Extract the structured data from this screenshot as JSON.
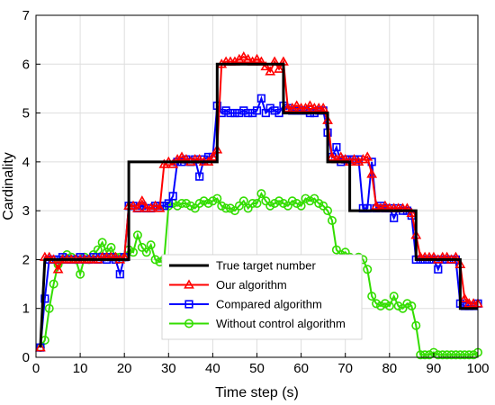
{
  "chart_data": {
    "type": "line",
    "title": "",
    "xlabel": "Time step (s)",
    "ylabel": "Cardinality",
    "xlim": [
      0,
      100
    ],
    "ylim": [
      0,
      7
    ],
    "xticks": [
      0,
      10,
      20,
      30,
      40,
      50,
      60,
      70,
      80,
      90,
      100
    ],
    "yticks": [
      0,
      1,
      2,
      3,
      4,
      5,
      6,
      7
    ],
    "grid": true,
    "legend_position": "bottom-center",
    "series": [
      {
        "name": "True target number",
        "color": "#000000",
        "marker": "none",
        "x": [
          1,
          2,
          21,
          21,
          41,
          41,
          56,
          56,
          66,
          66,
          71,
          71,
          76,
          76,
          86,
          86,
          96,
          96,
          100
        ],
        "y": [
          0.2,
          2,
          2,
          4,
          4,
          6,
          6,
          5,
          5,
          4,
          4,
          3,
          3,
          3,
          3,
          2,
          2,
          1,
          1
        ]
      },
      {
        "name": "Our algorithm",
        "color": "#ff0000",
        "marker": "triangle",
        "x": [
          1,
          2,
          3,
          4,
          5,
          6,
          7,
          8,
          9,
          10,
          11,
          12,
          13,
          14,
          15,
          16,
          17,
          18,
          19,
          20,
          21,
          22,
          23,
          24,
          25,
          26,
          27,
          28,
          29,
          30,
          31,
          32,
          33,
          34,
          35,
          36,
          37,
          38,
          39,
          40,
          41,
          42,
          43,
          44,
          45,
          46,
          47,
          48,
          49,
          50,
          51,
          52,
          53,
          54,
          55,
          56,
          57,
          58,
          59,
          60,
          61,
          62,
          63,
          64,
          65,
          66,
          67,
          68,
          69,
          70,
          71,
          72,
          73,
          74,
          75,
          76,
          77,
          78,
          79,
          80,
          81,
          82,
          83,
          84,
          85,
          86,
          87,
          88,
          89,
          90,
          91,
          92,
          93,
          94,
          95,
          96,
          97,
          98,
          99,
          100
        ],
        "y": [
          0.2,
          2.05,
          2.05,
          2.0,
          1.8,
          2.0,
          2.0,
          2.0,
          2.0,
          2.0,
          2.0,
          2.0,
          2.0,
          2.0,
          2.05,
          2.05,
          2.05,
          2.05,
          2.0,
          2.05,
          3.1,
          3.1,
          3.05,
          3.2,
          3.05,
          3.05,
          3.1,
          3.05,
          3.95,
          4.0,
          3.95,
          4.05,
          4.1,
          4.05,
          4.0,
          4.05,
          4.05,
          4.0,
          4.0,
          4.1,
          4.25,
          6.0,
          6.05,
          6.05,
          6.05,
          6.1,
          6.15,
          6.1,
          6.05,
          6.1,
          6.05,
          5.95,
          5.85,
          6.05,
          5.9,
          6.05,
          5.1,
          5.1,
          5.15,
          5.1,
          5.1,
          5.15,
          5.1,
          5.1,
          5.1,
          4.85,
          4.1,
          4.05,
          4.1,
          4.05,
          4.0,
          4.05,
          4.0,
          4.05,
          4.1,
          3.75,
          3.1,
          3.05,
          3.1,
          3.05,
          3.05,
          3.05,
          3.05,
          3.05,
          2.95,
          2.5,
          2.05,
          2.05,
          2.05,
          2.05,
          2.0,
          2.05,
          2.05,
          2.0,
          2.05,
          1.9,
          1.2,
          1.1,
          1.1,
          1.1
        ]
      },
      {
        "name": "Compared algorithm",
        "color": "#0000ff",
        "marker": "square",
        "x": [
          1,
          2,
          3,
          4,
          5,
          6,
          7,
          8,
          9,
          10,
          11,
          12,
          13,
          14,
          15,
          16,
          17,
          18,
          19,
          20,
          21,
          22,
          23,
          24,
          25,
          26,
          27,
          28,
          29,
          30,
          31,
          32,
          33,
          34,
          35,
          36,
          37,
          38,
          39,
          40,
          41,
          42,
          43,
          44,
          45,
          46,
          47,
          48,
          49,
          50,
          51,
          52,
          53,
          54,
          55,
          56,
          57,
          58,
          59,
          60,
          61,
          62,
          63,
          64,
          65,
          66,
          67,
          68,
          69,
          70,
          71,
          72,
          73,
          74,
          75,
          76,
          77,
          78,
          79,
          80,
          81,
          82,
          83,
          84,
          85,
          86,
          87,
          88,
          89,
          90,
          91,
          92,
          93,
          94,
          95,
          96,
          97,
          98,
          99,
          100
        ],
        "y": [
          0.2,
          1.2,
          2.0,
          2.0,
          2.0,
          2.05,
          2.0,
          2.0,
          2.0,
          2.05,
          2.0,
          2.0,
          2.05,
          2.0,
          2.05,
          2.0,
          2.05,
          2.0,
          1.7,
          2.05,
          3.1,
          3.1,
          3.05,
          3.1,
          3.05,
          3.05,
          3.1,
          3.1,
          3.1,
          3.15,
          3.3,
          4.0,
          4.0,
          4.05,
          4.0,
          4.05,
          3.7,
          4.05,
          4.1,
          4.1,
          5.15,
          5.0,
          5.05,
          5.0,
          5.0,
          5.0,
          5.05,
          5.0,
          5.0,
          5.05,
          5.3,
          5.0,
          5.1,
          5.05,
          5.0,
          5.15,
          5.1,
          5.05,
          5.05,
          5.05,
          5.05,
          5.0,
          5.0,
          5.05,
          5.05,
          4.6,
          4.1,
          4.3,
          4.0,
          4.05,
          4.05,
          4.05,
          4.05,
          3.05,
          3.05,
          4.0,
          3.05,
          3.1,
          3.05,
          3.05,
          2.85,
          3.05,
          3.0,
          3.0,
          2.9,
          2.0,
          2.0,
          2.0,
          2.0,
          2.0,
          1.8,
          2.0,
          2.0,
          2.0,
          2.0,
          1.1,
          1.05,
          1.05,
          1.05,
          1.1
        ]
      },
      {
        "name": "Without control algorithm",
        "color": "#33dd00",
        "marker": "circle",
        "x": [
          1,
          2,
          3,
          4,
          5,
          6,
          7,
          8,
          9,
          10,
          11,
          12,
          13,
          14,
          15,
          16,
          17,
          18,
          19,
          20,
          21,
          22,
          23,
          24,
          25,
          26,
          27,
          28,
          29,
          30,
          31,
          32,
          33,
          34,
          35,
          36,
          37,
          38,
          39,
          40,
          41,
          42,
          43,
          44,
          45,
          46,
          47,
          48,
          49,
          50,
          51,
          52,
          53,
          54,
          55,
          56,
          57,
          58,
          59,
          60,
          61,
          62,
          63,
          64,
          65,
          66,
          67,
          68,
          69,
          70,
          71,
          72,
          73,
          74,
          75,
          76,
          77,
          78,
          79,
          80,
          81,
          82,
          83,
          84,
          85,
          86,
          87,
          88,
          89,
          90,
          91,
          92,
          93,
          94,
          95,
          96,
          97,
          98,
          99,
          100
        ],
        "y": [
          0.2,
          0.35,
          1.0,
          1.5,
          1.9,
          2.0,
          2.1,
          2.05,
          2.0,
          1.7,
          2.05,
          2.0,
          2.1,
          2.2,
          2.35,
          2.15,
          2.25,
          2.05,
          2.05,
          2.05,
          2.2,
          2.15,
          2.5,
          2.25,
          2.15,
          2.3,
          2.0,
          1.95,
          2.0,
          3.1,
          3.15,
          3.1,
          3.15,
          3.15,
          3.1,
          3.05,
          3.15,
          3.2,
          3.15,
          3.2,
          3.25,
          3.1,
          3.05,
          3.05,
          3.0,
          3.1,
          3.2,
          3.05,
          3.15,
          3.15,
          3.35,
          3.2,
          3.1,
          3.15,
          3.2,
          3.15,
          3.1,
          3.2,
          3.15,
          3.1,
          3.25,
          3.2,
          3.25,
          3.15,
          3.1,
          3.0,
          2.8,
          2.2,
          2.1,
          2.15,
          2.05,
          2.0,
          2.05,
          2.0,
          1.8,
          1.25,
          1.1,
          1.05,
          1.1,
          1.05,
          1.25,
          1.05,
          1.0,
          1.1,
          1.05,
          0.65,
          0.05,
          0.05,
          0.05,
          0.1,
          0.05,
          0.05,
          0.05,
          0.05,
          0.05,
          0.05,
          0.05,
          0.05,
          0.05,
          0.1
        ]
      }
    ]
  }
}
